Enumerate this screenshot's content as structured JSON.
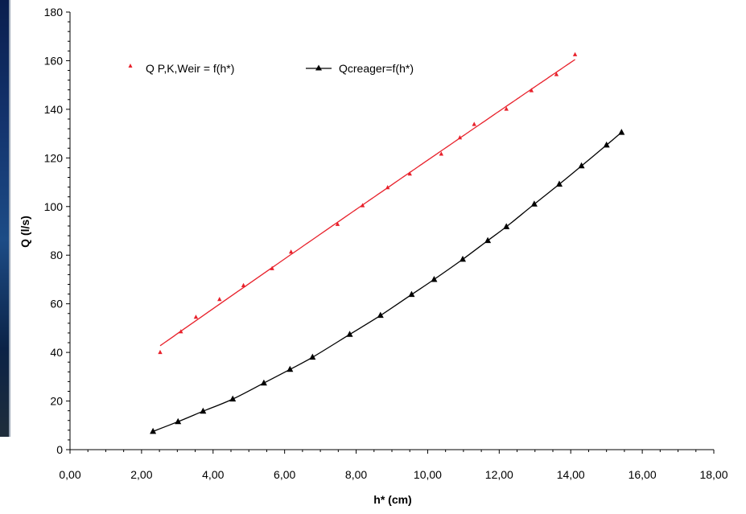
{
  "chart_data": {
    "type": "scatter",
    "xlabel": "h* (cm)",
    "ylabel": "Q (l/s)",
    "xlim": [
      0,
      18
    ],
    "ylim": [
      0,
      180
    ],
    "x_ticks": [
      "0,00",
      "2,00",
      "4,00",
      "6,00",
      "8,00",
      "10,00",
      "12,00",
      "14,00",
      "16,00",
      "18,00"
    ],
    "y_ticks": [
      "0",
      "20",
      "40",
      "60",
      "80",
      "100",
      "120",
      "140",
      "160",
      "180"
    ],
    "grid": false,
    "legend_position": "top-left",
    "series": [
      {
        "name": "Q P,K,Weir = f(h*)",
        "color": "#e8212b",
        "marker": "small-triangle",
        "line": "smooth trendline",
        "x": [
          2.52,
          3.1,
          3.52,
          4.18,
          4.85,
          5.65,
          6.18,
          7.48,
          8.18,
          8.88,
          9.5,
          10.38,
          10.9,
          11.3,
          12.2,
          12.9,
          13.6,
          14.12
        ],
        "y": [
          40,
          48.5,
          54.5,
          61.8,
          67.5,
          74.5,
          81.3,
          92.7,
          100.4,
          107.8,
          113.4,
          121.6,
          128.3,
          133.8,
          140.1,
          147.7,
          154.3,
          162.5
        ]
      },
      {
        "name": "Qcreager=f(h*)",
        "color": "#000000",
        "marker": "triangle",
        "line": "smooth line with markers",
        "x": [
          2.32,
          3.02,
          3.72,
          4.55,
          5.42,
          6.15,
          6.78,
          7.82,
          8.68,
          9.55,
          10.18,
          10.98,
          11.68,
          12.2,
          12.98,
          13.68,
          14.3,
          15.0,
          15.42
        ],
        "y": [
          7.5,
          11.5,
          15.8,
          20.8,
          27.4,
          33.0,
          38.0,
          47.4,
          55.2,
          63.8,
          70.0,
          78.3,
          86.0,
          91.7,
          101.0,
          109.2,
          116.7,
          125.3,
          130.5
        ]
      }
    ]
  }
}
